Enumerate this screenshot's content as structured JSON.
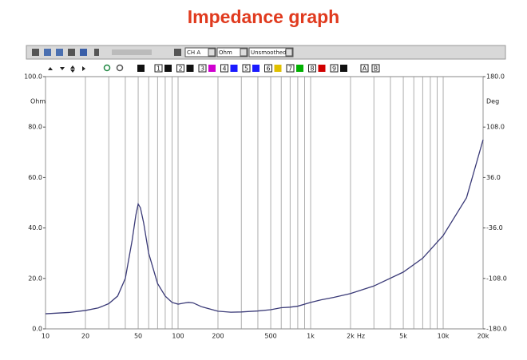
{
  "title": "Impedance graph",
  "toolbar": {
    "channel": "CH A",
    "unit": "Ohm",
    "smoothing": "Unsmoothed",
    "channels": [
      "1",
      "2",
      "3",
      "4",
      "5",
      "6",
      "7",
      "8",
      "9"
    ],
    "channel_colors": [
      "#111111",
      "#111111",
      "#d000d0",
      "#1a1aff",
      "#1a1aff",
      "#e0c000",
      "#00b000",
      "#d00000",
      "#111111"
    ],
    "traces": [
      "A",
      "B"
    ]
  },
  "chart_data": {
    "type": "line",
    "x_scale": "log",
    "y_label": "Ohm",
    "y2_label": "Deg",
    "x_label": "Hz",
    "x": [
      10,
      15,
      20,
      25,
      30,
      35,
      40,
      45,
      48,
      50,
      52,
      55,
      60,
      70,
      80,
      90,
      100,
      110,
      120,
      130,
      150,
      200,
      250,
      300,
      400,
      500,
      600,
      700,
      800,
      1000,
      1200,
      1500,
      2000,
      3000,
      5000,
      7000,
      10000,
      15000,
      20000
    ],
    "series": [
      {
        "name": "Impedance",
        "color": "#3b3b78",
        "values": [
          6.0,
          6.5,
          7.3,
          8.3,
          10.0,
          13,
          20,
          35,
          45,
          49.5,
          48,
          42,
          30,
          18,
          13,
          10.5,
          9.8,
          10.2,
          10.5,
          10.3,
          8.8,
          7.0,
          6.6,
          6.7,
          7.1,
          7.6,
          8.4,
          8.6,
          9.0,
          10.5,
          11.5,
          12.5,
          14.0,
          17,
          22.5,
          28,
          37,
          52,
          75
        ]
      }
    ],
    "xlim": [
      10,
      20000
    ],
    "xticks": [
      10,
      20,
      50,
      100,
      200,
      500,
      {
        "value": 1000,
        "label": "1k"
      },
      {
        "value": 2000,
        "label": "2k"
      },
      {
        "value": 5000,
        "label": "5k"
      },
      {
        "value": 10000,
        "label": "10k"
      },
      {
        "value": 20000,
        "label": "20k"
      }
    ],
    "x_minor_ticks": [
      30,
      40,
      60,
      70,
      80,
      90,
      300,
      400,
      600,
      700,
      800,
      900,
      3000,
      4000,
      6000,
      7000,
      8000,
      9000
    ],
    "ylim": [
      0,
      100
    ],
    "yticks": [
      {
        "value": 0,
        "label": "0.0"
      },
      {
        "value": 20,
        "label": "20.0"
      },
      {
        "value": 40,
        "label": "40.0"
      },
      {
        "value": 60,
        "label": "60.0"
      },
      {
        "value": 80,
        "label": "80.0"
      },
      {
        "value": 100,
        "label": "100.0"
      }
    ],
    "y2lim": [
      -180,
      180
    ],
    "y2ticks": [
      {
        "value": -180,
        "label": "-180.0"
      },
      {
        "value": -108,
        "label": "-108.0"
      },
      {
        "value": -36,
        "label": "-36.0"
      },
      {
        "value": 36,
        "label": "36.0"
      },
      {
        "value": 108,
        "label": "108.0"
      },
      {
        "value": 180,
        "label": "180.0"
      }
    ]
  }
}
